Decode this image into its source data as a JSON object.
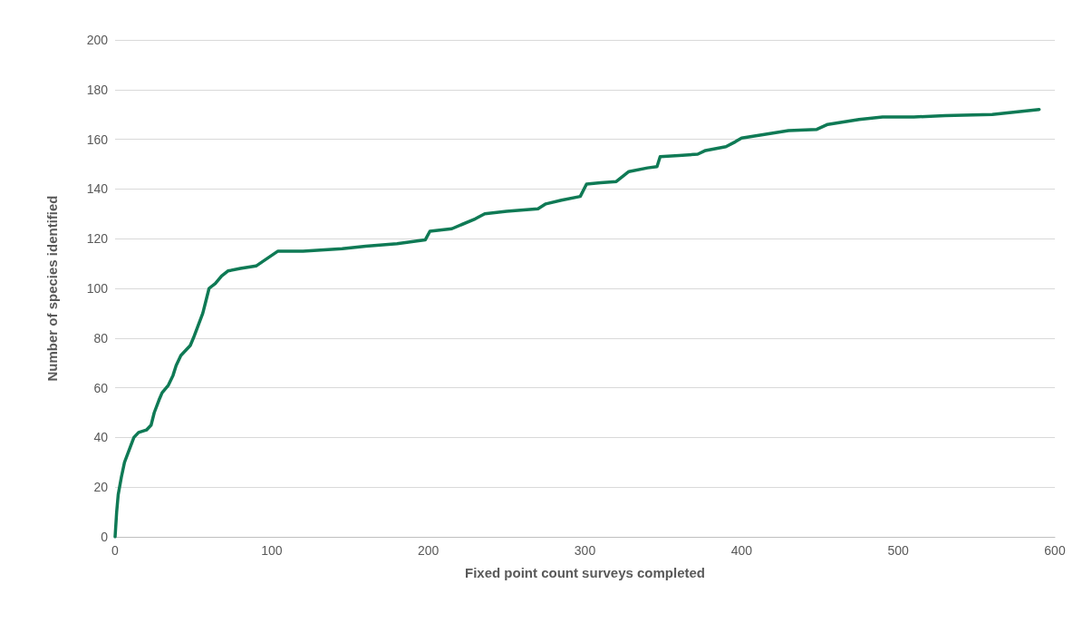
{
  "chart_data": {
    "type": "line",
    "xlabel": "Fixed point count surveys completed",
    "ylabel": "Number of species identified",
    "x": [
      0,
      1,
      2,
      4,
      6,
      9,
      12,
      15,
      20,
      23,
      25,
      28,
      30,
      34,
      37,
      39,
      42,
      45,
      48,
      50,
      53,
      56,
      58,
      60,
      64,
      68,
      72,
      80,
      90,
      97,
      104,
      120,
      145,
      160,
      180,
      198,
      201,
      215,
      230,
      236,
      250,
      270,
      275,
      285,
      297,
      301,
      310,
      320,
      328,
      340,
      346,
      348,
      360,
      372,
      377,
      390,
      396,
      400,
      420,
      430,
      448,
      455,
      475,
      490,
      510,
      530,
      560,
      590
    ],
    "series": [
      {
        "color": "#0f7a55",
        "values": [
          0,
          10,
          17,
          24,
          30,
          35,
          40,
          42,
          43,
          45,
          50,
          55,
          58,
          61,
          65,
          69,
          73,
          75,
          77,
          80,
          85,
          90,
          95,
          100,
          102,
          105,
          107,
          108,
          109,
          112,
          115,
          115,
          116,
          117,
          118,
          119.5,
          123,
          124,
          128,
          130,
          131,
          132,
          134,
          135.5,
          137,
          142,
          142.5,
          143,
          147,
          148.5,
          149,
          153,
          153.5,
          154,
          155.5,
          157,
          159,
          160.5,
          162.5,
          163.5,
          164,
          166,
          168,
          169,
          169,
          169.5,
          170,
          172
        ]
      }
    ],
    "xlim": [
      0,
      600
    ],
    "xticks": [
      0,
      100,
      200,
      300,
      400,
      500,
      600
    ],
    "ylim": [
      0,
      200
    ],
    "yticks": [
      0,
      20,
      40,
      60,
      80,
      100,
      120,
      140,
      160,
      180,
      200
    ],
    "grid": "y",
    "marker": "none",
    "line_style": "solid"
  }
}
